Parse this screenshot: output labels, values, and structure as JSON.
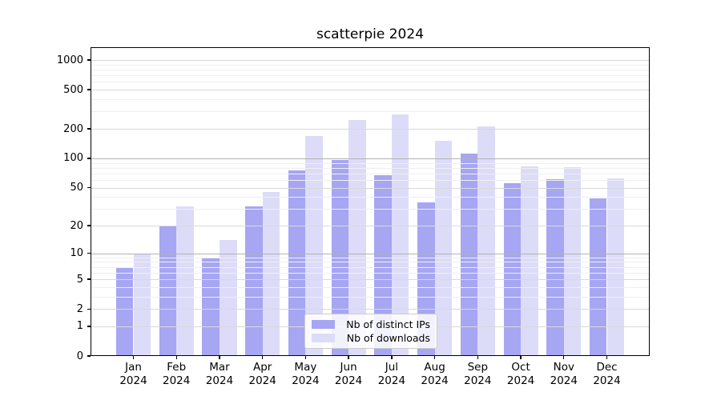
{
  "title": "scatterpie 2024",
  "legend": {
    "items": [
      {
        "label": "Nb of distinct IPs",
        "color": "#a6a6f2"
      },
      {
        "label": "Nb of downloads",
        "color": "#dcdcf9"
      }
    ]
  },
  "chart_data": {
    "type": "bar",
    "title": "scatterpie 2024",
    "categories": [
      "Jan 2024",
      "Feb 2024",
      "Mar 2024",
      "Apr 2024",
      "May 2024",
      "Jun 2024",
      "Jul 2024",
      "Aug 2024",
      "Sep 2024",
      "Oct 2024",
      "Nov 2024",
      "Dec 2024"
    ],
    "series": [
      {
        "name": "Nb of distinct IPs",
        "color": "#a6a6f2",
        "values": [
          7,
          20,
          9,
          32,
          75,
          97,
          67,
          35,
          112,
          55,
          61,
          39
        ]
      },
      {
        "name": "Nb of downloads",
        "color": "#dcdcf9",
        "values": [
          10,
          32,
          14,
          45,
          170,
          245,
          280,
          150,
          210,
          82,
          81,
          62
        ]
      }
    ],
    "xlabel": "",
    "ylabel": "",
    "yscale": "log1p",
    "yticks": [
      0,
      1,
      2,
      5,
      10,
      20,
      50,
      100,
      200,
      500,
      1000
    ],
    "ylim": [
      0,
      1350
    ],
    "grid": true,
    "grid_emphasis_ticks": [
      10,
      100
    ],
    "legend_position": "lower center"
  },
  "colors": {
    "grid_major": "#d9d9d9",
    "grid_emphasis": "#b2b2b2",
    "grid_minor": "#efefef",
    "spine": "#000000"
  }
}
